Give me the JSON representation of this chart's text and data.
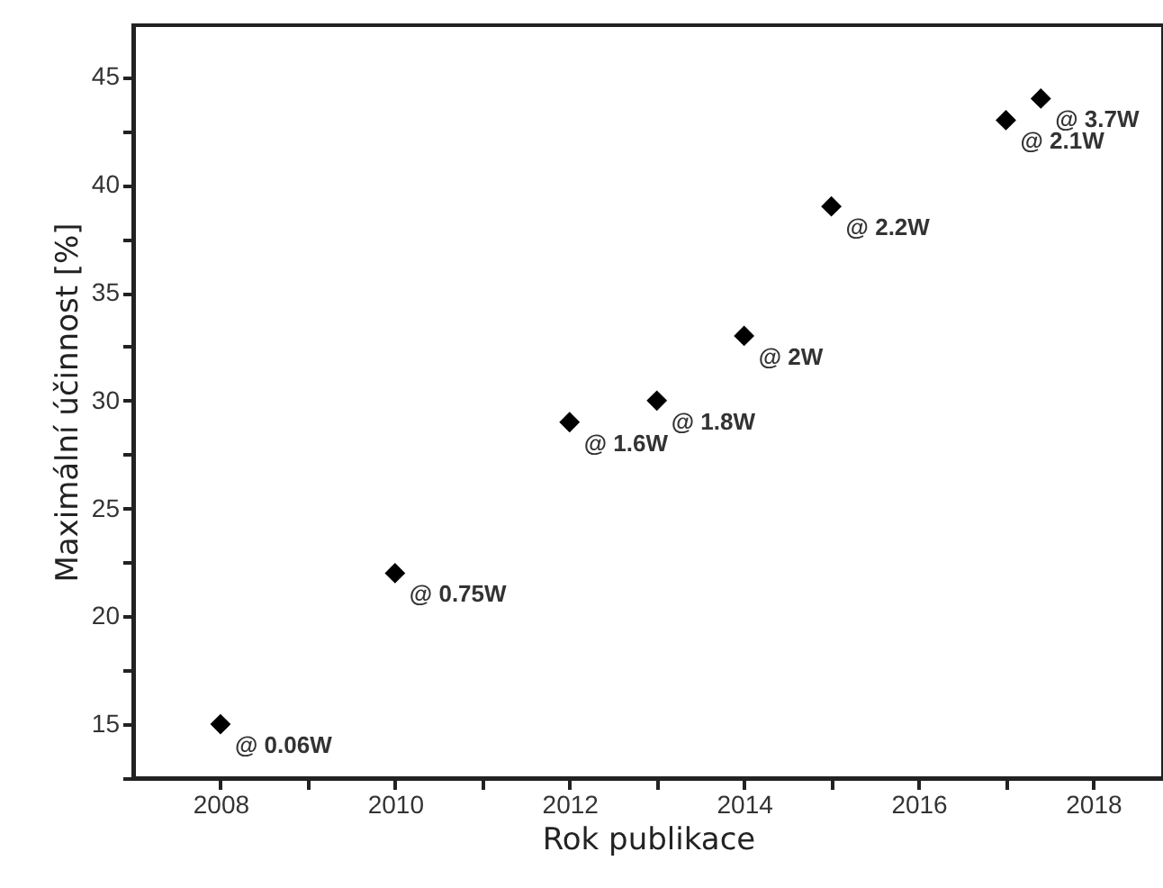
{
  "chart_data": {
    "type": "scatter",
    "xlabel": "Rok publikace",
    "ylabel": "Maximální účinnost [%]",
    "x": [
      2008,
      2010,
      2012,
      2013,
      2014,
      2015,
      2017,
      2017.4
    ],
    "series": [
      {
        "color": "#000000",
        "values": [
          15,
          22,
          29,
          30,
          33,
          39,
          43,
          44
        ]
      }
    ],
    "value_labels": [
      "@ 0.06W",
      "@ 0.75W",
      "@ 1.6W",
      "@ 1.8W",
      "@ 2W",
      "@ 2.2W",
      "@ 2.1W",
      "@ 3.7W"
    ],
    "marker": "diamond",
    "grid": false,
    "xlim": [
      2007,
      2018.8
    ],
    "xticks": [
      2008,
      {
        "value": 2009,
        "label": null
      },
      2010,
      {
        "value": 2011,
        "label": null
      },
      2012,
      {
        "value": 2013,
        "label": null
      },
      2014,
      {
        "value": 2015,
        "label": null
      },
      2016,
      {
        "value": 2017,
        "label": null
      },
      2018
    ],
    "ylim": [
      12.5,
      47.4
    ],
    "yticks": [
      {
        "value": 12.5,
        "label": null
      },
      15,
      {
        "value": 17.5,
        "label": null
      },
      20,
      {
        "value": 22.5,
        "label": null
      },
      25,
      {
        "value": 27.5,
        "label": null
      },
      30,
      {
        "value": 32.5,
        "label": null
      },
      35,
      {
        "value": 37.5,
        "label": null
      },
      40,
      {
        "value": 42.5,
        "label": null
      },
      45
    ]
  }
}
